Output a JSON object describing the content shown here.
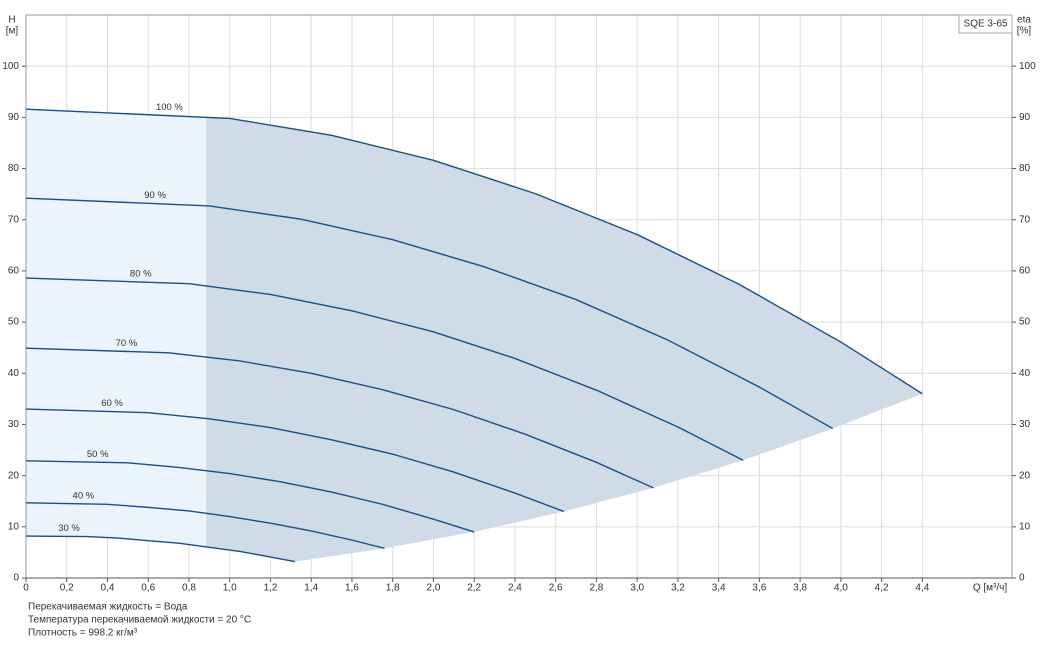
{
  "chart_data": {
    "type": "line",
    "title": "SQE 3-65",
    "ylabel": "H",
    "yunit": "[м]",
    "y2label": "eta",
    "y2unit": "[%]",
    "xlabel": "Q [м³/ч]",
    "notes": [
      "Перекачиваемая жидкость = Вода",
      "Температура перекачиваемой жидкости = 20 °C",
      "Плотность = 998.2 кг/м³"
    ],
    "min_flow_q": 0.88,
    "color": "#1a4f8a",
    "fill_color": "#cfdbe6",
    "light_fill_color": "#eaf4fc",
    "grid": true,
    "xlim": [
      0,
      4.84
    ],
    "ylim": [
      0,
      110
    ],
    "y2lim": [
      0,
      110
    ],
    "xticks": [
      0,
      {
        "value": 0.2,
        "label": "0,2"
      },
      {
        "value": 0.4,
        "label": "0,4"
      },
      {
        "value": 0.6,
        "label": "0,6"
      },
      {
        "value": 0.8,
        "label": "0,8"
      },
      {
        "value": 1.0,
        "label": "1,0"
      },
      {
        "value": 1.2,
        "label": "1,2"
      },
      {
        "value": 1.4,
        "label": "1,4"
      },
      {
        "value": 1.6,
        "label": "1,6"
      },
      {
        "value": 1.8,
        "label": "1,8"
      },
      {
        "value": 2.0,
        "label": "2,0"
      },
      {
        "value": 2.2,
        "label": "2,2"
      },
      {
        "value": 2.4,
        "label": "2,4"
      },
      {
        "value": 2.6,
        "label": "2,6"
      },
      {
        "value": 2.8,
        "label": "2,8"
      },
      {
        "value": 3.0,
        "label": "3,0"
      },
      {
        "value": 3.2,
        "label": "3,2"
      },
      {
        "value": 3.4,
        "label": "3,4"
      },
      {
        "value": 3.6,
        "label": "3,6"
      },
      {
        "value": 3.8,
        "label": "3,8"
      },
      {
        "value": 4.0,
        "label": "4,0"
      },
      {
        "value": 4.2,
        "label": "4,2"
      },
      {
        "value": 4.4,
        "label": "4,4"
      }
    ],
    "yticks": [
      0,
      10,
      20,
      30,
      40,
      50,
      60,
      70,
      80,
      90,
      100
    ],
    "y2ticks": [
      0,
      10,
      20,
      30,
      40,
      50,
      60,
      70,
      80,
      90,
      100
    ],
    "series": [
      {
        "name": "100 %",
        "x": [
          0,
          1,
          1.5,
          2,
          2.5,
          3,
          3.5,
          4,
          4.4
        ],
        "values": [
          91.6,
          89.8,
          86.5,
          81.6,
          75.1,
          67.1,
          57.4,
          46.1,
          36.0
        ]
      },
      {
        "name": "90 %",
        "x": [
          0,
          0.9,
          1.35,
          1.8,
          2.25,
          2.7,
          3.15,
          3.6,
          3.96
        ],
        "values": [
          74.2,
          72.7,
          70.1,
          66.1,
          60.8,
          54.4,
          46.5,
          37.3,
          29.2
        ]
      },
      {
        "name": "80 %",
        "x": [
          0,
          0.8,
          1.2,
          1.6,
          2.0,
          2.4,
          2.8,
          3.2,
          3.52
        ],
        "values": [
          58.6,
          57.5,
          55.4,
          52.2,
          48.1,
          42.9,
          36.7,
          29.5,
          23.0
        ]
      },
      {
        "name": "70 %",
        "x": [
          0,
          0.7,
          1.05,
          1.4,
          1.75,
          2.1,
          2.45,
          2.8,
          3.08
        ],
        "values": [
          44.9,
          44.0,
          42.4,
          40.0,
          36.8,
          32.9,
          28.1,
          22.6,
          17.6
        ]
      },
      {
        "name": "60 %",
        "x": [
          0,
          0.6,
          0.9,
          1.2,
          1.5,
          1.8,
          2.1,
          2.4,
          2.64
        ],
        "values": [
          33.0,
          32.3,
          31.1,
          29.4,
          27.0,
          24.2,
          20.7,
          16.6,
          13.0
        ]
      },
      {
        "name": "50 %",
        "x": [
          0,
          0.5,
          0.75,
          1.0,
          1.25,
          1.5,
          1.75,
          2.0,
          2.2
        ],
        "values": [
          22.9,
          22.5,
          21.6,
          20.4,
          18.8,
          16.8,
          14.4,
          11.5,
          9.0
        ]
      },
      {
        "name": "40 %",
        "x": [
          0,
          0.4,
          0.6,
          0.8,
          1.0,
          1.2,
          1.4,
          1.6,
          1.76
        ],
        "values": [
          14.7,
          14.4,
          13.8,
          13.1,
          12.0,
          10.7,
          9.2,
          7.4,
          5.8
        ]
      },
      {
        "name": "30 %",
        "x": [
          0,
          0.3,
          0.45,
          0.6,
          0.75,
          0.9,
          1.05,
          1.2,
          1.32
        ],
        "values": [
          8.2,
          8.1,
          7.8,
          7.3,
          6.8,
          6.0,
          5.2,
          4.1,
          3.2
        ]
      }
    ]
  }
}
